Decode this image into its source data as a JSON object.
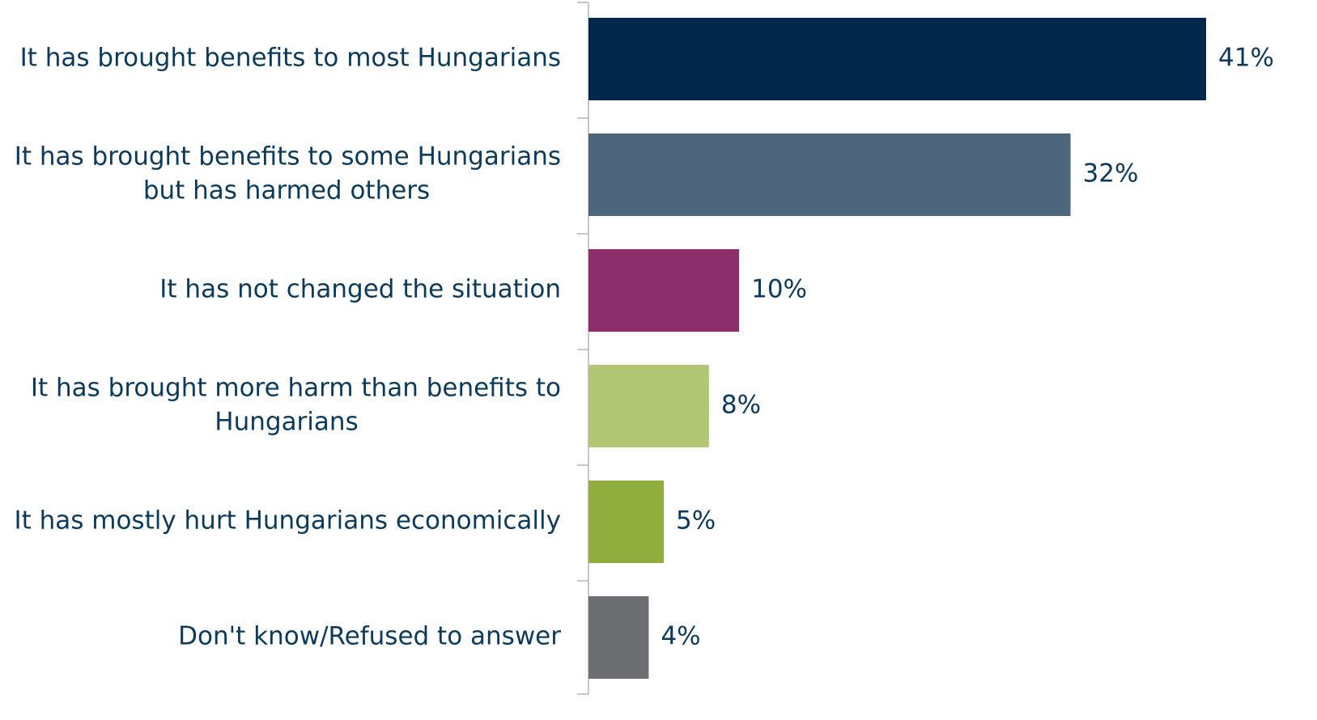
{
  "chart_data": {
    "type": "bar",
    "orientation": "horizontal",
    "categories": [
      [
        "It has brought benefits to most Hungarians"
      ],
      [
        "It has brought benefits to some Hungarians",
        "but has harmed others"
      ],
      [
        "It has not changed the situation"
      ],
      [
        "It has brought more harm than benefits to",
        "Hungarians"
      ],
      [
        "It has mostly hurt Hungarians economically"
      ],
      [
        "Don't know/Refused to answer"
      ]
    ],
    "values": [
      41,
      32,
      10,
      8,
      5,
      4
    ],
    "value_labels": [
      "41%",
      "32%",
      "10%",
      "8%",
      "5%",
      "4%"
    ],
    "colors": [
      "#04284b",
      "#4d667e",
      "#8b2e6b",
      "#b2c676",
      "#8fae3e",
      "#6d6e71"
    ],
    "xlim": [
      0,
      41
    ],
    "grid": false,
    "legend": "none"
  }
}
